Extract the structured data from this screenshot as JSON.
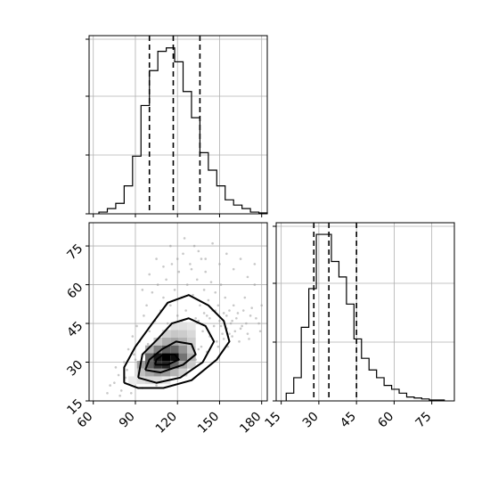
{
  "chart_data": [
    {
      "panel": "marginal-x",
      "type": "histogram",
      "step": true,
      "bin_edges": [
        64,
        70,
        76,
        82,
        88,
        94,
        100,
        106,
        112,
        118,
        124,
        130,
        136,
        142,
        148,
        154,
        160,
        166,
        172,
        178,
        184
      ],
      "counts": [
        1,
        3,
        6,
        16,
        33,
        62,
        82,
        93,
        95,
        87,
        70,
        55,
        35,
        25,
        16,
        8,
        5,
        3,
        1,
        0.5
      ],
      "quantiles": [
        100,
        117,
        136
      ],
      "xlim": [
        57,
        184
      ],
      "ylim": [
        0,
        102
      ],
      "xticks": [
        60,
        90,
        120,
        150,
        180
      ],
      "y_ticks_fraction": [
        0,
        0.33,
        0.66,
        0.98
      ],
      "grid": true
    },
    {
      "panel": "marginal-y",
      "type": "histogram",
      "step": true,
      "bin_edges": [
        17,
        20,
        23,
        26,
        29,
        32,
        35,
        38,
        41,
        44,
        47,
        50,
        53,
        56,
        59,
        62,
        65,
        68,
        71,
        74,
        77,
        80
      ],
      "counts": [
        4,
        12,
        38,
        58,
        86,
        86,
        72,
        64,
        50,
        32,
        22,
        16,
        12,
        8,
        6,
        4,
        2,
        1.5,
        1,
        0.5,
        0.5
      ],
      "quantiles": [
        28,
        34,
        45
      ],
      "xlim": [
        13,
        84
      ],
      "ylim": [
        0,
        92
      ],
      "xticks": [
        15,
        30,
        45,
        60,
        75
      ],
      "y_ticks_fraction": [
        0,
        0.33,
        0.66,
        0.98
      ],
      "grid": true
    },
    {
      "panel": "joint",
      "type": "scatter+contour",
      "xlim": [
        57,
        184
      ],
      "ylim": [
        15,
        84
      ],
      "xticks": [
        60,
        90,
        120,
        150,
        180
      ],
      "yticks": [
        15,
        30,
        45,
        60,
        75
      ],
      "grid": true,
      "density_cells": [
        {
          "x": 88,
          "y": 23,
          "v": 0.08
        },
        {
          "x": 94,
          "y": 23,
          "v": 0.12
        },
        {
          "x": 100,
          "y": 23,
          "v": 0.15
        },
        {
          "x": 106,
          "y": 23,
          "v": 0.14
        },
        {
          "x": 112,
          "y": 23,
          "v": 0.1
        },
        {
          "x": 94,
          "y": 26,
          "v": 0.25
        },
        {
          "x": 100,
          "y": 26,
          "v": 0.35
        },
        {
          "x": 106,
          "y": 26,
          "v": 0.42
        },
        {
          "x": 112,
          "y": 26,
          "v": 0.4
        },
        {
          "x": 118,
          "y": 26,
          "v": 0.3
        },
        {
          "x": 124,
          "y": 26,
          "v": 0.18
        },
        {
          "x": 94,
          "y": 29,
          "v": 0.38
        },
        {
          "x": 100,
          "y": 29,
          "v": 0.62
        },
        {
          "x": 106,
          "y": 29,
          "v": 0.8
        },
        {
          "x": 112,
          "y": 29,
          "v": 0.85
        },
        {
          "x": 118,
          "y": 29,
          "v": 0.6
        },
        {
          "x": 124,
          "y": 29,
          "v": 0.35
        },
        {
          "x": 130,
          "y": 29,
          "v": 0.2
        },
        {
          "x": 100,
          "y": 32,
          "v": 0.6
        },
        {
          "x": 106,
          "y": 32,
          "v": 0.9
        },
        {
          "x": 112,
          "y": 32,
          "v": 1.0
        },
        {
          "x": 118,
          "y": 32,
          "v": 0.95
        },
        {
          "x": 124,
          "y": 32,
          "v": 0.55
        },
        {
          "x": 130,
          "y": 32,
          "v": 0.3
        },
        {
          "x": 100,
          "y": 35,
          "v": 0.3
        },
        {
          "x": 106,
          "y": 35,
          "v": 0.5
        },
        {
          "x": 112,
          "y": 35,
          "v": 0.62
        },
        {
          "x": 118,
          "y": 35,
          "v": 0.6
        },
        {
          "x": 124,
          "y": 35,
          "v": 0.42
        },
        {
          "x": 130,
          "y": 35,
          "v": 0.22
        },
        {
          "x": 106,
          "y": 38,
          "v": 0.22
        },
        {
          "x": 112,
          "y": 38,
          "v": 0.32
        },
        {
          "x": 118,
          "y": 38,
          "v": 0.35
        },
        {
          "x": 124,
          "y": 38,
          "v": 0.3
        },
        {
          "x": 130,
          "y": 38,
          "v": 0.2
        },
        {
          "x": 112,
          "y": 41,
          "v": 0.18
        },
        {
          "x": 118,
          "y": 41,
          "v": 0.22
        },
        {
          "x": 124,
          "y": 41,
          "v": 0.2
        },
        {
          "x": 130,
          "y": 41,
          "v": 0.15
        },
        {
          "x": 118,
          "y": 44,
          "v": 0.12
        },
        {
          "x": 124,
          "y": 44,
          "v": 0.12
        },
        {
          "x": 130,
          "y": 44,
          "v": 0.1
        }
      ],
      "contours": [
        [
          [
            82,
            22
          ],
          [
            92,
            20
          ],
          [
            110,
            20
          ],
          [
            130,
            23
          ],
          [
            148,
            31
          ],
          [
            157,
            38
          ],
          [
            153,
            46
          ],
          [
            142,
            52
          ],
          [
            128,
            56
          ],
          [
            113,
            53
          ],
          [
            102,
            45
          ],
          [
            90,
            36
          ],
          [
            82,
            28
          ],
          [
            82,
            22
          ]
        ],
        [
          [
            92,
            24
          ],
          [
            105,
            22
          ],
          [
            122,
            24
          ],
          [
            138,
            30
          ],
          [
            146,
            38
          ],
          [
            140,
            44
          ],
          [
            128,
            47
          ],
          [
            116,
            45
          ],
          [
            106,
            39
          ],
          [
            95,
            33
          ],
          [
            92,
            24
          ]
        ],
        [
          [
            97,
            27
          ],
          [
            108,
            26
          ],
          [
            124,
            29
          ],
          [
            133,
            33
          ],
          [
            130,
            37
          ],
          [
            119,
            38
          ],
          [
            109,
            35
          ],
          [
            100,
            31
          ],
          [
            97,
            27
          ]
        ],
        [
          [
            104,
            29
          ],
          [
            113,
            29
          ],
          [
            121,
            31
          ],
          [
            118,
            33
          ],
          [
            110,
            33
          ],
          [
            105,
            31
          ],
          [
            104,
            29
          ]
        ]
      ],
      "scatter_points": [
        [
          75,
          22
        ],
        [
          78,
          25
        ],
        [
          80,
          19
        ],
        [
          82,
          30
        ],
        [
          84,
          27
        ],
        [
          85,
          35
        ],
        [
          86,
          22
        ],
        [
          88,
          40
        ],
        [
          90,
          31
        ],
        [
          91,
          44
        ],
        [
          92,
          26
        ],
        [
          93,
          38
        ],
        [
          95,
          20
        ],
        [
          96,
          48
        ],
        [
          97,
          33
        ],
        [
          98,
          52
        ],
        [
          99,
          25
        ],
        [
          100,
          42
        ],
        [
          101,
          36
        ],
        [
          102,
          57
        ],
        [
          103,
          29
        ],
        [
          104,
          46
        ],
        [
          105,
          21
        ],
        [
          106,
          60
        ],
        [
          107,
          39
        ],
        [
          108,
          50
        ],
        [
          109,
          27
        ],
        [
          110,
          55
        ],
        [
          111,
          34
        ],
        [
          112,
          62
        ],
        [
          113,
          45
        ],
        [
          114,
          24
        ],
        [
          115,
          52
        ],
        [
          116,
          68
        ],
        [
          117,
          37
        ],
        [
          118,
          58
        ],
        [
          119,
          30
        ],
        [
          120,
          48
        ],
        [
          121,
          65
        ],
        [
          122,
          41
        ],
        [
          123,
          55
        ],
        [
          124,
          72
        ],
        [
          125,
          33
        ],
        [
          126,
          50
        ],
        [
          127,
          60
        ],
        [
          128,
          44
        ],
        [
          129,
          68
        ],
        [
          130,
          38
        ],
        [
          131,
          56
        ],
        [
          132,
          75
        ],
        [
          133,
          47
        ],
        [
          134,
          62
        ],
        [
          135,
          35
        ],
        [
          136,
          52
        ],
        [
          137,
          70
        ],
        [
          138,
          42
        ],
        [
          139,
          58
        ],
        [
          140,
          65
        ],
        [
          141,
          48
        ],
        [
          142,
          54
        ],
        [
          143,
          40
        ],
        [
          144,
          61
        ],
        [
          145,
          50
        ],
        [
          146,
          44
        ],
        [
          147,
          57
        ],
        [
          148,
          38
        ],
        [
          149,
          52
        ],
        [
          150,
          46
        ],
        [
          151,
          60
        ],
        [
          152,
          41
        ],
        [
          153,
          49
        ],
        [
          154,
          55
        ],
        [
          155,
          43
        ],
        [
          156,
          36
        ],
        [
          157,
          50
        ],
        [
          158,
          45
        ],
        [
          159,
          40
        ],
        [
          160,
          52
        ],
        [
          162,
          47
        ],
        [
          164,
          38
        ],
        [
          166,
          44
        ],
        [
          168,
          55
        ],
        [
          170,
          41
        ],
        [
          172,
          48
        ],
        [
          175,
          60
        ],
        [
          178,
          45
        ],
        [
          180,
          52
        ],
        [
          70,
          18
        ],
        [
          72,
          21
        ],
        [
          76,
          28
        ],
        [
          79,
          17
        ],
        [
          83,
          24
        ],
        [
          87,
          18
        ],
        [
          89,
          33
        ],
        [
          94,
          29
        ],
        [
          96,
          22
        ],
        [
          99,
          37
        ],
        [
          102,
          23
        ],
        [
          104,
          34
        ],
        [
          107,
          26
        ],
        [
          109,
          41
        ],
        [
          111,
          28
        ],
        [
          113,
          37
        ],
        [
          115,
          31
        ],
        [
          117,
          43
        ],
        [
          119,
          26
        ],
        [
          121,
          36
        ],
        [
          123,
          46
        ],
        [
          125,
          28
        ],
        [
          127,
          40
        ],
        [
          129,
          33
        ],
        [
          131,
          44
        ],
        [
          133,
          31
        ],
        [
          135,
          46
        ],
        [
          137,
          36
        ],
        [
          139,
          49
        ],
        [
          141,
          34
        ],
        [
          143,
          47
        ],
        [
          145,
          39
        ],
        [
          147,
          50
        ],
        [
          149,
          36
        ],
        [
          151,
          44
        ],
        [
          153,
          39
        ],
        [
          155,
          48
        ],
        [
          157,
          41
        ],
        [
          159,
          46
        ],
        [
          161,
          42
        ],
        [
          163,
          49
        ],
        [
          165,
          43
        ],
        [
          167,
          50
        ],
        [
          169,
          45
        ],
        [
          171,
          39
        ],
        [
          173,
          51
        ],
        [
          176,
          47
        ],
        [
          179,
          42
        ],
        [
          95,
          58
        ],
        [
          100,
          64
        ],
        [
          105,
          70
        ],
        [
          110,
          67
        ],
        [
          115,
          75
        ],
        [
          120,
          70
        ],
        [
          125,
          78
        ],
        [
          130,
          66
        ],
        [
          135,
          73
        ],
        [
          140,
          70
        ],
        [
          145,
          76
        ],
        [
          150,
          68
        ],
        [
          155,
          72
        ],
        [
          160,
          66
        ],
        [
          165,
          70
        ],
        [
          170,
          63
        ],
        [
          175,
          68
        ]
      ]
    }
  ]
}
